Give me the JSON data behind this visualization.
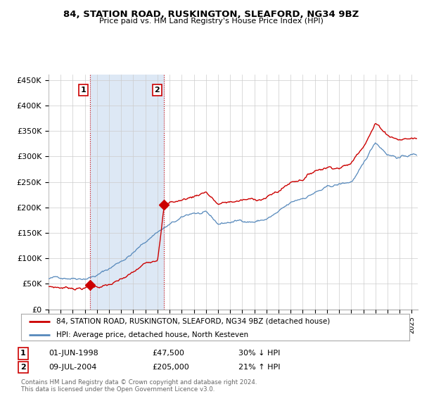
{
  "title": "84, STATION ROAD, RUSKINGTON, SLEAFORD, NG34 9BZ",
  "subtitle": "Price paid vs. HM Land Registry's House Price Index (HPI)",
  "legend_line1": "84, STATION ROAD, RUSKINGTON, SLEAFORD, NG34 9BZ (detached house)",
  "legend_line2": "HPI: Average price, detached house, North Kesteven",
  "annotation1_date": "01-JUN-1998",
  "annotation1_price": "£47,500",
  "annotation1_hpi": "30% ↓ HPI",
  "annotation2_date": "09-JUL-2004",
  "annotation2_price": "£205,000",
  "annotation2_hpi": "21% ↑ HPI",
  "footer": "Contains HM Land Registry data © Crown copyright and database right 2024.\nThis data is licensed under the Open Government Licence v3.0.",
  "red_color": "#cc0000",
  "blue_color": "#5588bb",
  "shade_color": "#dde8f5",
  "annotation_box_color": "#cc0000",
  "ylim": [
    0,
    460000
  ],
  "yticks": [
    0,
    50000,
    100000,
    150000,
    200000,
    250000,
    300000,
    350000,
    400000,
    450000
  ],
  "ytick_labels": [
    "£0",
    "£50K",
    "£100K",
    "£150K",
    "£200K",
    "£250K",
    "£300K",
    "£350K",
    "£400K",
    "£450K"
  ],
  "sale1_x": 1998.42,
  "sale1_y": 47500,
  "sale2_x": 2004.52,
  "sale2_y": 205000,
  "xlim": [
    1995,
    2025.5
  ]
}
